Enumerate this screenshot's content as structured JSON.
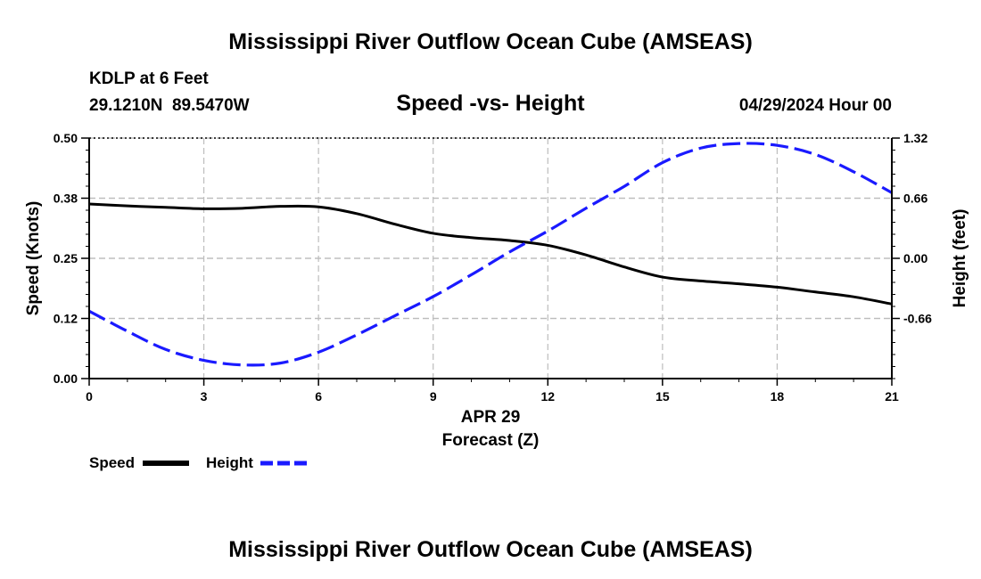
{
  "chart_data": {
    "type": "line",
    "title": "Mississippi River Outflow Ocean Cube (AMSEAS)",
    "footer_title": "Mississippi River Outflow Ocean Cube (AMSEAS)",
    "station": "KDLP at 6 Feet",
    "coordinates": "29.1210N  89.5470W",
    "subtitle": "Speed -vs- Height",
    "datetime": "04/29/2024 Hour 00",
    "xlabel_date": "APR 29",
    "xlabel": "Forecast (Z)",
    "ylabel_left": "Speed (Knots)",
    "ylabel_right": "Height (feet)",
    "xlim": [
      0,
      21
    ],
    "ylim_left": [
      0,
      0.5
    ],
    "ylim_right": [
      -1.32,
      1.32
    ],
    "x_ticks": [
      0,
      3,
      6,
      9,
      12,
      15,
      18,
      21
    ],
    "x_tick_labels": [
      "0",
      "3",
      "6",
      "9",
      "12",
      "15",
      "18",
      "21"
    ],
    "y_left_ticks": [
      0,
      0.125,
      0.25,
      0.375,
      0.5
    ],
    "y_left_tick_labels": [
      "0.00",
      "0.12",
      "0.25",
      "0.38",
      "0.50"
    ],
    "y_right_ticks": [
      -0.66,
      0,
      0.66,
      1.32
    ],
    "y_right_tick_labels": [
      "-0.66",
      "0.00",
      "0.66",
      "1.32"
    ],
    "grid": true,
    "legend_position": "bottom-left",
    "series": [
      {
        "name": "Speed",
        "axis": "left",
        "color": "#000000",
        "style": "solid",
        "x": [
          0,
          1,
          2,
          3,
          4,
          5,
          6,
          7,
          8,
          9,
          10,
          11,
          12,
          13,
          14,
          15,
          16,
          17,
          18,
          19,
          20,
          21
        ],
        "values": [
          0.363,
          0.359,
          0.356,
          0.353,
          0.354,
          0.358,
          0.357,
          0.343,
          0.321,
          0.302,
          0.293,
          0.287,
          0.277,
          0.257,
          0.232,
          0.211,
          0.203,
          0.197,
          0.19,
          0.18,
          0.17,
          0.155
        ]
      },
      {
        "name": "Height",
        "axis": "right",
        "color": "#1a1aff",
        "style": "dashed",
        "x": [
          0,
          1,
          2,
          3,
          4,
          5,
          6,
          7,
          8,
          9,
          10,
          11,
          12,
          13,
          14,
          15,
          16,
          17,
          18,
          19,
          20,
          21
        ],
        "values": [
          -0.58,
          -0.8,
          -1.0,
          -1.12,
          -1.17,
          -1.15,
          -1.03,
          -0.84,
          -0.63,
          -0.42,
          -0.18,
          0.07,
          0.3,
          0.55,
          0.79,
          1.05,
          1.21,
          1.26,
          1.24,
          1.14,
          0.95,
          0.72
        ]
      }
    ]
  }
}
